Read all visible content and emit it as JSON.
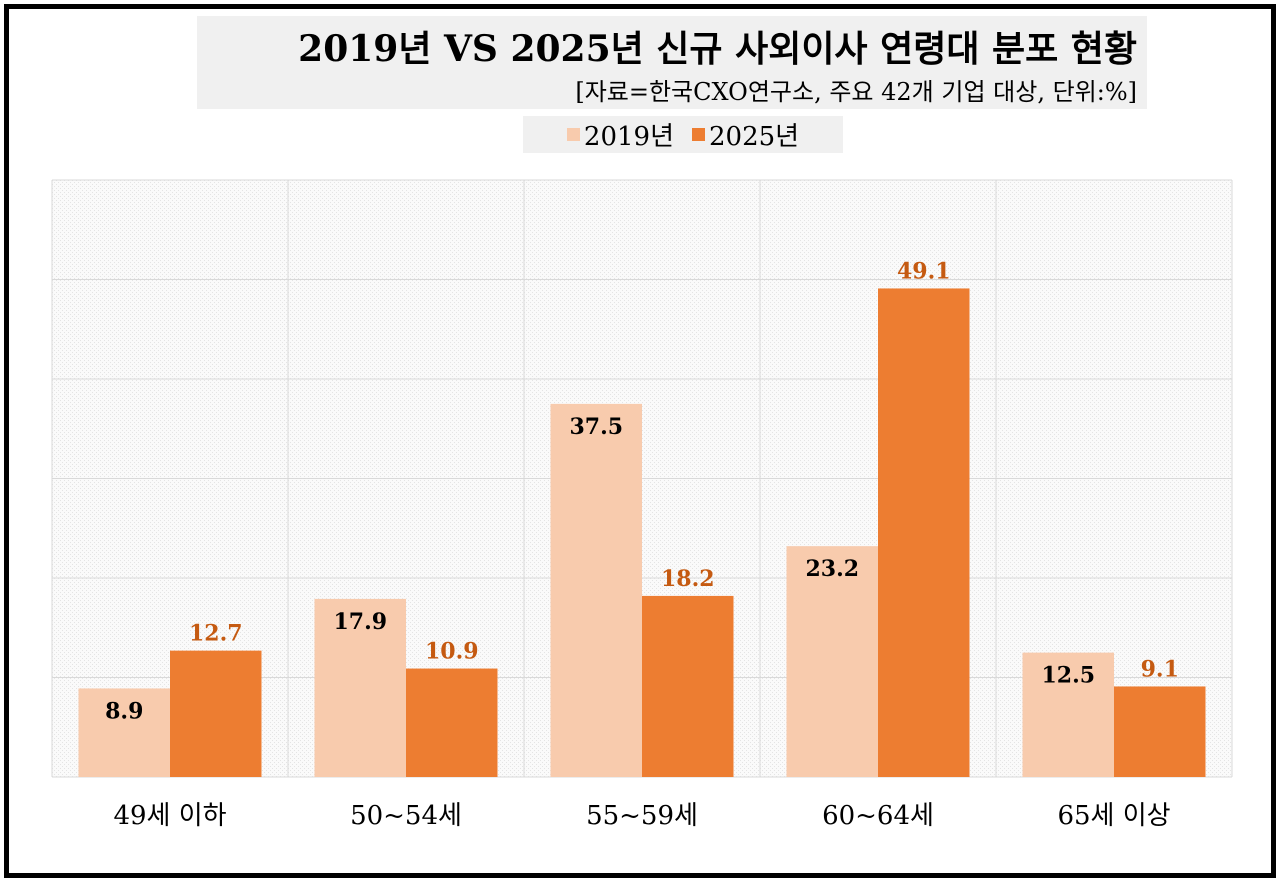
{
  "chart_data": {
    "type": "bar",
    "title": "2019년 VS 2025년 신규 사외이사 연령대 분포 현황",
    "subtitle": "[자료=한국CXO연구소, 주요 42개 기업 대상, 단위:%]",
    "categories": [
      "49세 이하",
      "50~54세",
      "55~59세",
      "60~64세",
      "65세 이상"
    ],
    "series": [
      {
        "name": "2019년",
        "values": [
          8.9,
          17.9,
          37.5,
          23.2,
          12.5
        ],
        "color": "#F8CBAD",
        "label_color": "#000000"
      },
      {
        "name": "2025년",
        "values": [
          12.7,
          10.9,
          18.2,
          49.1,
          9.1
        ],
        "color": "#ED7D31",
        "label_color": "#C55A11"
      }
    ],
    "xlabel": "",
    "ylabel": "",
    "ylim": [
      0,
      60
    ],
    "y_gridline_step": 10,
    "y_tick_labels_shown": false,
    "grid": true,
    "legend_position": "top"
  }
}
